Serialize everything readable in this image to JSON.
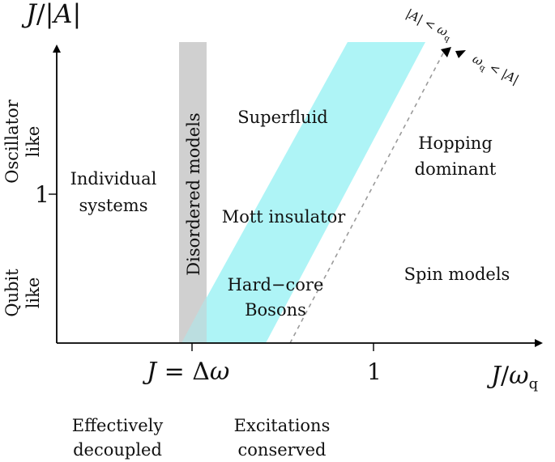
{
  "axes": {
    "y_title": {
      "prefix": "J",
      "slash": "/",
      "abs": "|A|"
    },
    "x_title": {
      "prefix": "J",
      "slash": "/",
      "omega": "ω",
      "sub": "q"
    },
    "y_tick": "1",
    "x_tick_delta": {
      "lhs": "J",
      "eq": " = ",
      "delta": "Δ",
      "omega": "ω"
    },
    "x_tick_one": "1"
  },
  "y_labels": {
    "upper_line1": "Oscillator",
    "upper_line2": "like",
    "lower_line1": "Qubit",
    "lower_line2": "like"
  },
  "regions": {
    "individual_line1": "Individual",
    "individual_line2": "systems",
    "disordered": "Disordered models",
    "superfluid": "Superfluid",
    "mott": "Mott insulator",
    "hardcore_line1": "Hard−core",
    "hardcore_line2": "Bosons",
    "hopping_line1": "Hopping",
    "hopping_line2": "dominant",
    "spin": "Spin models"
  },
  "boundary_labels": {
    "upper_left": {
      "abs": "|A|",
      "lt": " < ",
      "omega": "ω",
      "sub": "q"
    },
    "lower_right": {
      "omega": "ω",
      "sub": "q",
      "lt": " < ",
      "abs": "|A|"
    }
  },
  "bottom_labels": {
    "left_line1": "Effectively",
    "left_line2": "decoupled",
    "right_line1": "Excitations",
    "right_line2": "conserved"
  },
  "colors": {
    "cyan_band": "#aef4f6",
    "gray_band": "#cdcdcd",
    "axis": "#000000",
    "dashed": "#9a9a9a"
  }
}
